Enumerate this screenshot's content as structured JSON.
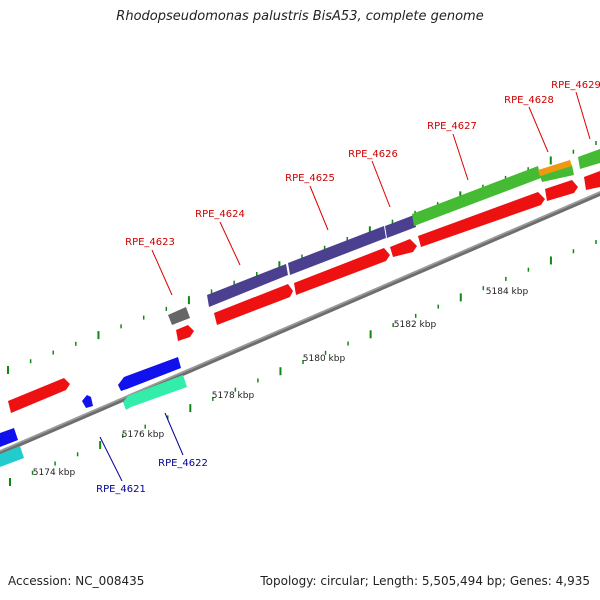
{
  "title": "Rhodopseudomonas palustris BisA53, complete genome",
  "footer": {
    "accession": "Accession: NC_008435",
    "summary": "Topology: circular; Length: 5,505,494 bp; Genes: 4,935"
  },
  "colors": {
    "backbone": "#8c8c8c",
    "forward_label": "#cc0000",
    "reverse_label": "#000099",
    "tick": "#118811",
    "cds_red": "#ee1111",
    "cds_purple": "#4b3f8f",
    "cds_green": "#44cc33",
    "cds_blue": "#1111ee",
    "cds_cyan": "#22eeaa",
    "cds_gray": "#666666",
    "cds_orange": "#ee9911",
    "cds_teal": "#22cccc"
  },
  "scale_labels": [
    "5174 kbp",
    "5176 kbp",
    "5178 kbp",
    "5180 kbp",
    "5182 kbp",
    "5184 kbp"
  ],
  "genes": {
    "forward": [
      "RPE_4623",
      "RPE_4624",
      "RPE_4625",
      "RPE_4626",
      "RPE_4627",
      "RPE_4628",
      "RPE_4629"
    ],
    "reverse": [
      "RPE_4621",
      "RPE_4622"
    ]
  }
}
